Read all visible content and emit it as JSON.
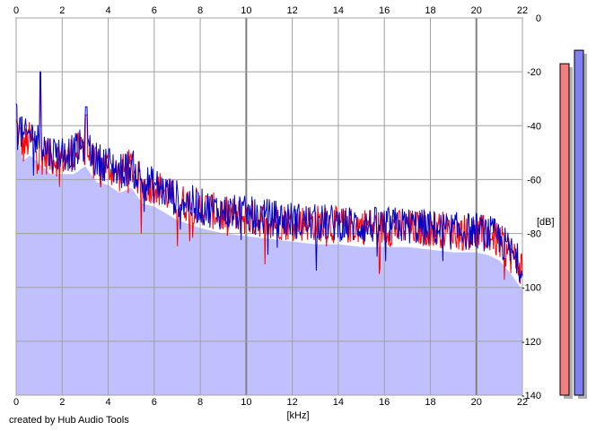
{
  "credit": "created by Hub Audio Tools",
  "chart_data": {
    "type": "area",
    "xlabel": "[kHz]",
    "ylabel": "[dB]",
    "xlim": [
      0,
      22
    ],
    "ylim": [
      -140,
      0
    ],
    "x_ticks": [
      0,
      2,
      4,
      6,
      8,
      10,
      12,
      14,
      16,
      18,
      20,
      22
    ],
    "y_ticks": [
      0,
      -20,
      -40,
      -60,
      -80,
      -100,
      -120,
      -140
    ],
    "grid": true,
    "fill_color": "#c0c0ff",
    "series": [
      {
        "color": "#ff0000",
        "envelope": [
          [
            0,
            -40
          ],
          [
            0.3,
            -48
          ],
          [
            0.6,
            -45
          ],
          [
            1,
            -50
          ],
          [
            1.5,
            -52
          ],
          [
            2,
            -52
          ],
          [
            2.5,
            -50
          ],
          [
            3,
            -48
          ],
          [
            3.5,
            -55
          ],
          [
            4,
            -55
          ],
          [
            4.5,
            -58
          ],
          [
            5,
            -55
          ],
          [
            5.5,
            -62
          ],
          [
            6,
            -62
          ],
          [
            7,
            -68
          ],
          [
            8,
            -70
          ],
          [
            9,
            -73
          ],
          [
            10,
            -74
          ],
          [
            11,
            -75
          ],
          [
            12,
            -76
          ],
          [
            13,
            -76
          ],
          [
            14,
            -77
          ],
          [
            15,
            -77
          ],
          [
            16,
            -78
          ],
          [
            17,
            -78
          ],
          [
            18,
            -78
          ],
          [
            19,
            -79
          ],
          [
            20,
            -80
          ],
          [
            20.5,
            -80
          ],
          [
            21,
            -83
          ],
          [
            21.5,
            -88
          ],
          [
            22,
            -93
          ]
        ]
      },
      {
        "color": "#0000cc",
        "envelope": [
          [
            0,
            -35
          ],
          [
            0.3,
            -45
          ],
          [
            0.6,
            -43
          ],
          [
            1,
            -46
          ],
          [
            1.5,
            -50
          ],
          [
            2,
            -50
          ],
          [
            2.5,
            -50
          ],
          [
            3,
            -47
          ],
          [
            3.5,
            -53
          ],
          [
            4,
            -54
          ],
          [
            4.5,
            -57
          ],
          [
            5,
            -55
          ],
          [
            5.5,
            -61
          ],
          [
            6,
            -62
          ],
          [
            7,
            -67
          ],
          [
            8,
            -70
          ],
          [
            9,
            -72
          ],
          [
            10,
            -73
          ],
          [
            11,
            -74
          ],
          [
            12,
            -75
          ],
          [
            13,
            -76
          ],
          [
            14,
            -76
          ],
          [
            15,
            -77
          ],
          [
            16,
            -77
          ],
          [
            17,
            -77
          ],
          [
            18,
            -78
          ],
          [
            19,
            -79
          ],
          [
            20,
            -79
          ],
          [
            20.5,
            -80
          ],
          [
            21,
            -82
          ],
          [
            21.5,
            -87
          ],
          [
            22,
            -93
          ]
        ]
      }
    ],
    "peaks": [
      [
        1.05,
        -23
      ],
      [
        3.05,
        -36
      ]
    ],
    "meters": [
      {
        "level_db": -17,
        "color": "#f08080"
      },
      {
        "level_db": -12,
        "color": "#8080f0"
      }
    ]
  }
}
